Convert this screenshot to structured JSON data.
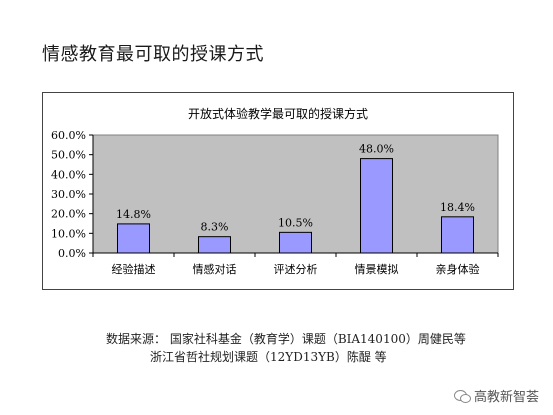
{
  "page": {
    "title": "情感教育最可取的授课方式"
  },
  "source": {
    "line1": "数据来源：  国家社科基金（教育学）课题（BIA140100）周健民等",
    "line2": "浙江省哲社规划课题（12YD13YB）陈醍  等"
  },
  "watermark": {
    "text": "高教新智荟",
    "icon": "wechat-icon"
  },
  "colors": {
    "bar_fill": "#9999FF",
    "bar_stroke": "#000000",
    "plot_bg": "#C0C0C0"
  },
  "chart_data": {
    "type": "bar",
    "title": "开放式体验教学最可取的授课方式",
    "categories": [
      "经验描述",
      "情感对话",
      "评述分析",
      "情景模拟",
      "亲身体验"
    ],
    "values": [
      14.8,
      8.3,
      10.5,
      48.0,
      18.4
    ],
    "value_labels": [
      "14.8%",
      "8.3%",
      "10.5%",
      "48.0%",
      "18.4%"
    ],
    "ylim": [
      0,
      60
    ],
    "yticks": [
      "0.0%",
      "10.0%",
      "20.0%",
      "30.0%",
      "40.0%",
      "50.0%",
      "60.0%"
    ],
    "grid": false,
    "legend": "none"
  }
}
